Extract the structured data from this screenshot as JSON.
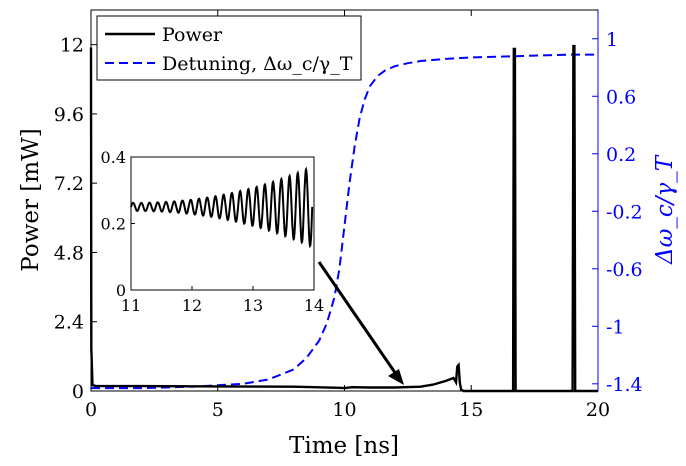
{
  "chart_data": {
    "type": "line",
    "xlabel": "Time [ns]",
    "ylabel_left": "Power [mW]",
    "ylabel_right": "Δω_c/γ_T",
    "xlim": [
      0,
      20
    ],
    "ylim_left": [
      0,
      13.2
    ],
    "ylim_right": [
      -1.45,
      1.2
    ],
    "x_ticks": [
      "0",
      "5",
      "10",
      "15",
      "20"
    ],
    "y_left_ticks": [
      "0",
      "2.4",
      "4.8",
      "7.2",
      "9.6",
      "12"
    ],
    "y_right_ticks": [
      "-1.4",
      "-1",
      "-0.6",
      "-0.2",
      "0.2",
      "0.6",
      "1"
    ],
    "grid": false,
    "legend_position": "top-left",
    "series": [
      {
        "name": "Power",
        "axis": "left",
        "color": "#000000",
        "dash": "solid",
        "x": [
          0,
          0.01,
          0.06,
          0.2,
          2,
          5,
          8,
          9.8,
          10,
          10.3,
          11,
          12,
          13,
          13.5,
          14,
          14.3,
          14.4,
          14.45,
          14.5,
          14.55,
          14.6,
          14.7,
          16.65,
          16.68,
          16.72,
          16.75,
          16.8,
          19.0,
          19.03,
          19.07,
          19.1,
          19.15,
          20
        ],
        "y": [
          11.9,
          1.5,
          0.2,
          0.17,
          0.17,
          0.16,
          0.15,
          0.11,
          0.1,
          0.13,
          0.12,
          0.12,
          0.15,
          0.22,
          0.35,
          0.45,
          0.3,
          0.85,
          0.9,
          0.3,
          0.05,
          0.0,
          0.0,
          11.85,
          11.85,
          0.0,
          0.0,
          0.0,
          11.95,
          11.95,
          0.0,
          0.0,
          0.0
        ]
      },
      {
        "name": "Detuning, Δω_c/γ_T",
        "axis": "right",
        "color": "#0000ff",
        "dash": "dashed",
        "x": [
          0,
          2,
          4,
          6,
          7,
          8,
          8.5,
          9,
          9.3,
          9.6,
          9.8,
          10,
          10.2,
          10.4,
          10.6,
          10.8,
          11,
          11.3,
          11.6,
          12,
          12.5,
          13,
          14,
          15,
          16,
          17,
          18,
          19,
          20
        ],
        "y": [
          -1.43,
          -1.43,
          -1.42,
          -1.4,
          -1.37,
          -1.3,
          -1.22,
          -1.1,
          -0.98,
          -0.8,
          -0.6,
          -0.3,
          0.0,
          0.25,
          0.45,
          0.58,
          0.67,
          0.74,
          0.78,
          0.81,
          0.83,
          0.845,
          0.86,
          0.87,
          0.875,
          0.88,
          0.885,
          0.89,
          0.89
        ]
      }
    ],
    "inset": {
      "type": "line",
      "xlim": [
        11,
        14
      ],
      "ylim": [
        0,
        0.4
      ],
      "x_ticks": [
        "11",
        "12",
        "13",
        "14"
      ],
      "y_ticks": [
        "0",
        "0.2",
        "0.4"
      ],
      "series": {
        "color": "#000000",
        "base": 0.25,
        "start_amplitude": 0.012,
        "end_amplitude": 0.12,
        "oscillation_period_ns": 0.135
      }
    },
    "legend": [
      "Power",
      "Detuning, Δω_c/γ_T"
    ]
  }
}
